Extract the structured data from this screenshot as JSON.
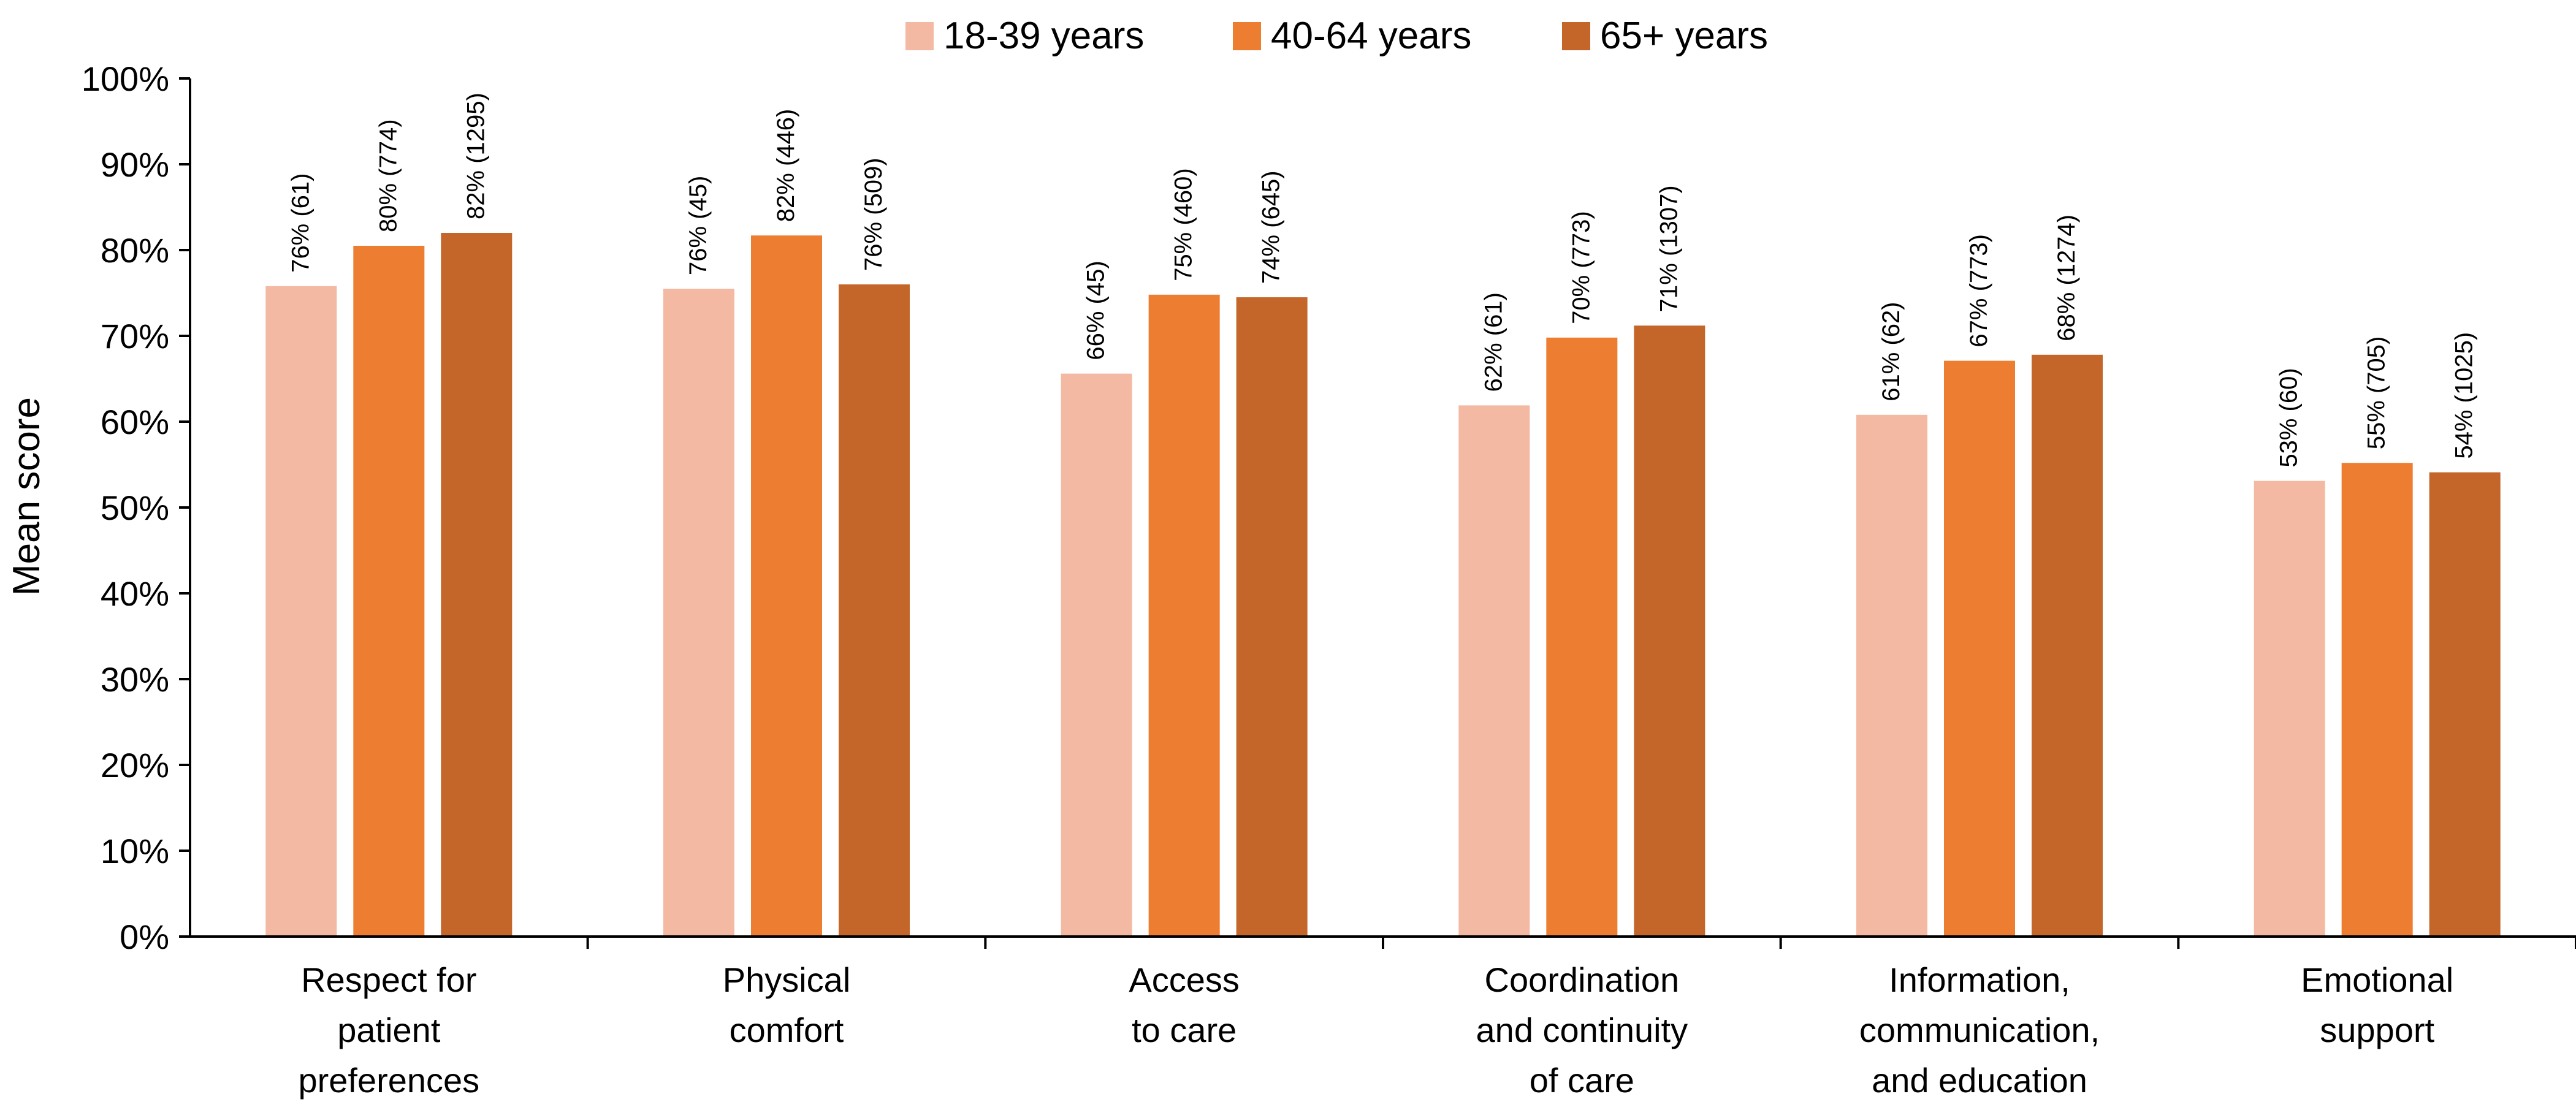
{
  "chart_data": {
    "type": "bar",
    "title": "",
    "xlabel": "",
    "ylabel": "Mean score",
    "ylim": [
      0,
      100
    ],
    "y_tick_labels": [
      "0%",
      "10%",
      "20%",
      "30%",
      "40%",
      "50%",
      "60%",
      "70%",
      "80%",
      "90%",
      "100%"
    ],
    "legend_position": "top-center",
    "grid": false,
    "categories": [
      [
        "Respect for",
        "patient",
        "preferences"
      ],
      [
        "Physical",
        "comfort"
      ],
      [
        "Access",
        "to care"
      ],
      [
        "Coordination",
        "and continuity",
        "of care"
      ],
      [
        "Information,",
        "communication,",
        "and education"
      ],
      [
        "Emotional",
        "support"
      ]
    ],
    "series": [
      {
        "name": "18-39 years",
        "color": "#F4B9A2",
        "values": [
          75.8,
          75.5,
          65.6,
          61.9,
          60.8,
          53.1
        ],
        "labels": [
          "76% (61)",
          "76% (45)",
          "66% (45)",
          "62% (61)",
          "61% (62)",
          "53% (60)"
        ]
      },
      {
        "name": "40-64 years",
        "color": "#ED7D31",
        "values": [
          80.5,
          81.7,
          74.8,
          69.8,
          67.1,
          55.2
        ],
        "labels": [
          "80% (774)",
          "82% (446)",
          "75% (460)",
          "70% (773)",
          "67% (773)",
          "55% (705)"
        ]
      },
      {
        "name": "65+ years",
        "color": "#C4662A",
        "values": [
          82.0,
          76.0,
          74.5,
          71.2,
          67.8,
          54.1
        ],
        "labels": [
          "82% (1295)",
          "76% (509)",
          "74% (645)",
          "71% (1307)",
          "68% (1274)",
          "54% (1025)"
        ]
      }
    ]
  }
}
